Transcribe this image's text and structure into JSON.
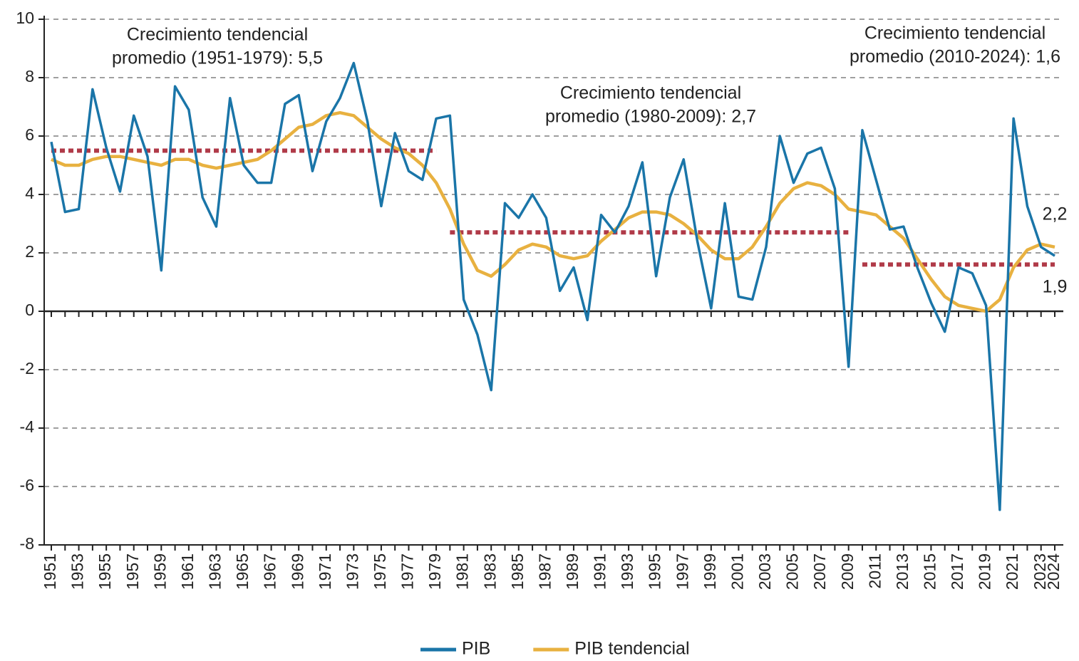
{
  "chart_data": {
    "type": "line",
    "x": [
      1951,
      1952,
      1953,
      1954,
      1955,
      1956,
      1957,
      1958,
      1959,
      1960,
      1961,
      1962,
      1963,
      1964,
      1965,
      1966,
      1967,
      1968,
      1969,
      1970,
      1971,
      1972,
      1973,
      1974,
      1975,
      1976,
      1977,
      1978,
      1979,
      1980,
      1981,
      1982,
      1983,
      1984,
      1985,
      1986,
      1987,
      1988,
      1989,
      1990,
      1991,
      1992,
      1993,
      1994,
      1995,
      1996,
      1997,
      1998,
      1999,
      2000,
      2001,
      2002,
      2003,
      2004,
      2005,
      2006,
      2007,
      2008,
      2009,
      2010,
      2011,
      2012,
      2013,
      2014,
      2015,
      2016,
      2017,
      2018,
      2019,
      2020,
      2021,
      2022,
      2023,
      2024
    ],
    "series": [
      {
        "name": "PIB",
        "color": "#1a75a8",
        "values": [
          5.8,
          3.4,
          3.5,
          7.6,
          5.6,
          4.1,
          6.7,
          5.3,
          1.4,
          7.7,
          6.9,
          3.9,
          2.9,
          7.3,
          5.0,
          4.4,
          4.4,
          7.1,
          7.4,
          4.8,
          6.5,
          7.3,
          8.5,
          6.5,
          3.6,
          6.1,
          4.8,
          4.5,
          6.6,
          6.7,
          0.4,
          -0.8,
          -2.7,
          3.7,
          3.2,
          4.0,
          3.2,
          0.7,
          1.5,
          -0.3,
          3.3,
          2.7,
          3.6,
          5.1,
          1.2,
          3.9,
          5.2,
          2.4,
          0.1,
          3.7,
          0.5,
          0.4,
          2.2,
          6.0,
          4.4,
          5.4,
          5.6,
          4.2,
          -1.9,
          6.2,
          4.5,
          2.8,
          2.9,
          1.5,
          0.3,
          -0.7,
          1.5,
          1.3,
          0.2,
          -6.8,
          6.6,
          3.6,
          2.2,
          1.9
        ],
        "value_labels": [
          null,
          null,
          null,
          null,
          null,
          null,
          null,
          null,
          null,
          null,
          null,
          null,
          null,
          null,
          null,
          null,
          null,
          null,
          null,
          null,
          null,
          null,
          null,
          null,
          null,
          null,
          null,
          null,
          null,
          null,
          null,
          null,
          null,
          null,
          null,
          null,
          null,
          null,
          null,
          null,
          null,
          null,
          null,
          null,
          null,
          null,
          null,
          null,
          null,
          null,
          null,
          null,
          null,
          null,
          null,
          null,
          null,
          null,
          null,
          null,
          null,
          null,
          null,
          null,
          null,
          null,
          null,
          null,
          null,
          null,
          null,
          null,
          null,
          "1,9"
        ]
      },
      {
        "name": "PIB tendencial",
        "color": "#e8b140",
        "values": [
          5.2,
          5.0,
          5.0,
          5.2,
          5.3,
          5.3,
          5.2,
          5.1,
          5.0,
          5.2,
          5.2,
          5.0,
          4.9,
          5.0,
          5.1,
          5.2,
          5.5,
          5.9,
          6.3,
          6.4,
          6.7,
          6.8,
          6.7,
          6.3,
          5.9,
          5.6,
          5.4,
          5.0,
          4.4,
          3.5,
          2.3,
          1.4,
          1.2,
          1.6,
          2.1,
          2.3,
          2.2,
          1.9,
          1.8,
          1.9,
          2.4,
          2.8,
          3.2,
          3.4,
          3.4,
          3.3,
          3.0,
          2.6,
          2.1,
          1.8,
          1.8,
          2.2,
          2.9,
          3.7,
          4.2,
          4.4,
          4.3,
          4.0,
          3.5,
          3.4,
          3.3,
          2.9,
          2.5,
          1.8,
          1.1,
          0.5,
          0.2,
          0.1,
          0.0,
          0.4,
          1.5,
          2.1,
          2.3,
          2.2
        ],
        "value_labels": [
          null,
          null,
          null,
          null,
          null,
          null,
          null,
          null,
          null,
          null,
          null,
          null,
          null,
          null,
          null,
          null,
          null,
          null,
          null,
          null,
          null,
          null,
          null,
          null,
          null,
          null,
          null,
          null,
          null,
          null,
          null,
          null,
          null,
          null,
          null,
          null,
          null,
          null,
          null,
          null,
          null,
          null,
          null,
          null,
          null,
          null,
          null,
          null,
          null,
          null,
          null,
          null,
          null,
          null,
          null,
          null,
          null,
          null,
          null,
          null,
          null,
          null,
          null,
          null,
          null,
          null,
          null,
          null,
          null,
          null,
          null,
          null,
          null,
          "2,2"
        ]
      }
    ],
    "reference_lines": [
      {
        "label": [
          "Crecimiento tendencial",
          "promedio (1951-1979): 5,5"
        ],
        "value": 5.5,
        "x": [
          1951,
          1979
        ],
        "color": "#b03a48"
      },
      {
        "label": [
          "Crecimiento tendencial",
          "promedio (1980-2009): 2,7"
        ],
        "value": 2.7,
        "x": [
          1980,
          2009
        ],
        "color": "#b03a48"
      },
      {
        "label": [
          "Crecimiento tendencial",
          "promedio (2010-2024): 1,6"
        ],
        "value": 1.6,
        "x": [
          2010,
          2024
        ],
        "color": "#b03a48"
      }
    ],
    "xlim": [
      1951,
      2024
    ],
    "xticks": [
      1951,
      1953,
      1955,
      1957,
      1959,
      1961,
      1963,
      1965,
      1967,
      1969,
      1971,
      1973,
      1975,
      1977,
      1979,
      1981,
      1983,
      1985,
      1987,
      1989,
      1991,
      1993,
      1995,
      1997,
      1999,
      2001,
      2003,
      2005,
      2007,
      2009,
      2011,
      2013,
      2015,
      2017,
      2019,
      2021,
      2023,
      2024
    ],
    "ylim": [
      -8,
      10
    ],
    "yticks": [
      -8,
      -6,
      -4,
      -2,
      0,
      2,
      4,
      6,
      8,
      10
    ],
    "grid": true,
    "legend": "bottom"
  }
}
